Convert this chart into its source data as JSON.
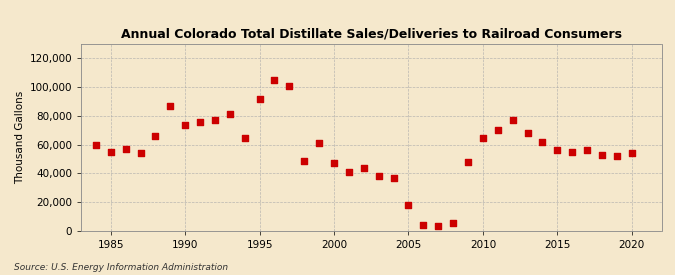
{
  "title": "Annual Colorado Total Distillate Sales/Deliveries to Railroad Consumers",
  "ylabel": "Thousand Gallons",
  "source": "Source: U.S. Energy Information Administration",
  "background_color": "#f5e8cc",
  "plot_background_color": "#f5e8cc",
  "marker_color": "#cc0000",
  "marker": "s",
  "marker_size": 16,
  "xlim": [
    1983,
    2022
  ],
  "ylim": [
    0,
    130000
  ],
  "yticks": [
    0,
    20000,
    40000,
    60000,
    80000,
    100000,
    120000
  ],
  "xticks": [
    1985,
    1990,
    1995,
    2000,
    2005,
    2010,
    2015,
    2020
  ],
  "data": {
    "1984": 60000,
    "1985": 55000,
    "1986": 57000,
    "1987": 54000,
    "1988": 66000,
    "1989": 87000,
    "1990": 74000,
    "1991": 76000,
    "1992": 77000,
    "1993": 81000,
    "1994": 65000,
    "1995": 92000,
    "1996": 105000,
    "1997": 101000,
    "1998": 49000,
    "1999": 61000,
    "2000": 47000,
    "2001": 41000,
    "2002": 44000,
    "2003": 38000,
    "2004": 37000,
    "2005": 18000,
    "2006": 4000,
    "2007": 3500,
    "2008": 5500,
    "2009": 48000,
    "2010": 65000,
    "2011": 70000,
    "2012": 77000,
    "2013": 68000,
    "2014": 62000,
    "2015": 56000,
    "2016": 55000,
    "2017": 56000,
    "2018": 53000,
    "2019": 52000,
    "2020": 54000
  }
}
